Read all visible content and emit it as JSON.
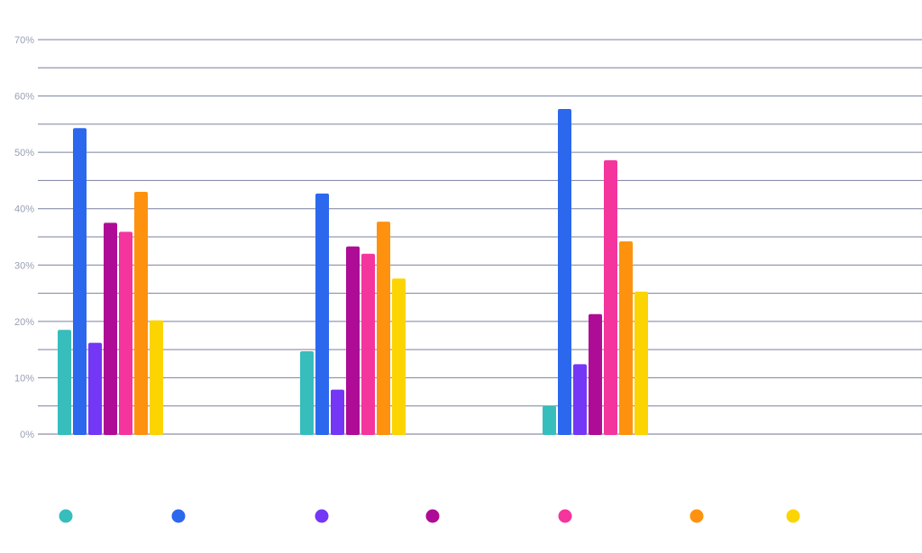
{
  "chart_data": {
    "type": "bar",
    "categories": [
      "",
      "",
      ""
    ],
    "series": [
      {
        "values": [
          18.5,
          14.7,
          5.0
        ],
        "color": "#36BDBC"
      },
      {
        "values": [
          54.3,
          42.7,
          57.7
        ],
        "color": "#2B68EE"
      },
      {
        "values": [
          16.2,
          7.9,
          12.4
        ],
        "color": "#7337F5"
      },
      {
        "values": [
          37.5,
          33.3,
          21.3
        ],
        "color": "#AE0B96"
      },
      {
        "values": [
          35.9,
          32.0,
          48.6
        ],
        "color": "#F4359D"
      },
      {
        "values": [
          43.0,
          37.7,
          34.2
        ],
        "color": "#FE920E"
      },
      {
        "values": [
          20.2,
          27.6,
          25.3
        ],
        "color": "#FCD402"
      }
    ],
    "ylim": [
      0,
      70
    ],
    "yticks": [
      "0%",
      "10%",
      "20%",
      "30%",
      "40%",
      "50%",
      "60%",
      "70%"
    ],
    "grid": true,
    "legend_position": "bottom",
    "title": "",
    "xlabel": "",
    "ylabel": ""
  }
}
